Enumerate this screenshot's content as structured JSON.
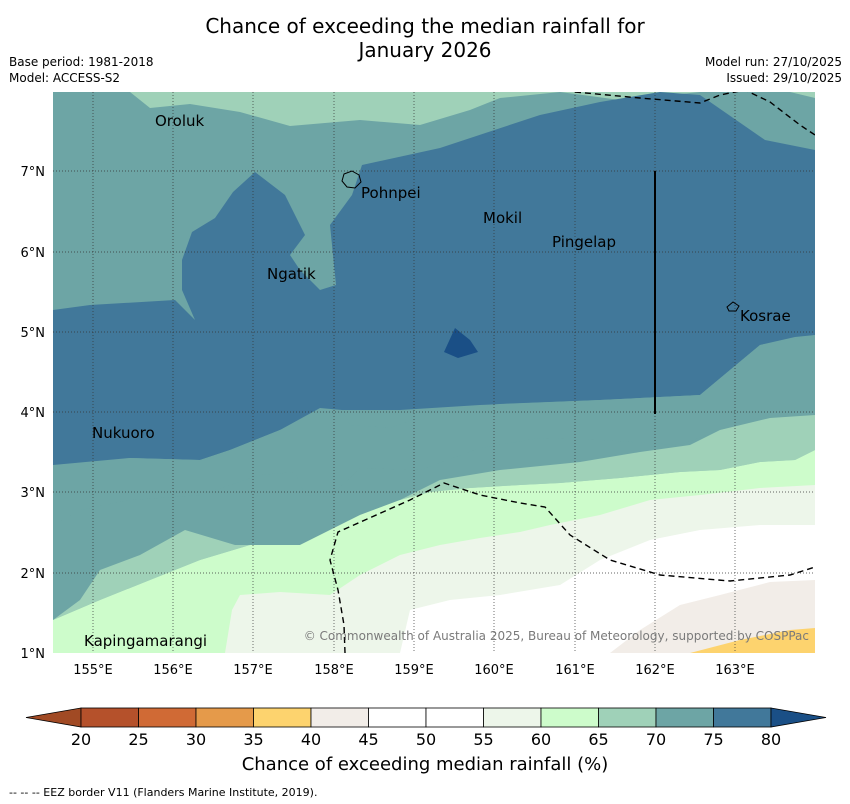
{
  "title_line1": "Chance of exceeding the median rainfall for",
  "title_line2": "January 2026",
  "meta_left": {
    "base_period": "Base period: 1981-2018",
    "model": "Model: ACCESS-S2"
  },
  "meta_right": {
    "model_run": "Model run: 27/10/2025",
    "issued": "Issued: 29/10/2025"
  },
  "map": {
    "lon_ticks": [
      "155°E",
      "156°E",
      "157°E",
      "158°E",
      "159°E",
      "160°E",
      "161°E",
      "162°E",
      "163°E"
    ],
    "lat_ticks": [
      "1°N",
      "2°N",
      "3°N",
      "4°N",
      "5°N",
      "6°N",
      "7°N"
    ],
    "places": [
      "Oroluk",
      "Pohnpei",
      "Mokil",
      "Pingelap",
      "Ngatik",
      "Kosrae",
      "Nukuoro",
      "Kapingamarangi"
    ],
    "copyright": "© Commonwealth of Australia 2025, Bureau of Meteorology, supported by COSPPac"
  },
  "colorbar": {
    "ticks": [
      "20",
      "25",
      "30",
      "35",
      "40",
      "45",
      "50",
      "55",
      "60",
      "65",
      "70",
      "75",
      "80"
    ],
    "colors": [
      "#a14a24",
      "#b5512b",
      "#d06a35",
      "#e59a4a",
      "#fdd36e",
      "#f2ede8",
      "#ffffff",
      "#ffffff",
      "#edf6ea",
      "#cdfccb",
      "#9fd1b8",
      "#6da5a5",
      "#41789a",
      "#1a4f86"
    ],
    "label": "Chance of exceeding median rainfall (%)"
  },
  "footer": "--  --  -- EEZ border V11 (Flanders Marine Institute, 2019)."
}
